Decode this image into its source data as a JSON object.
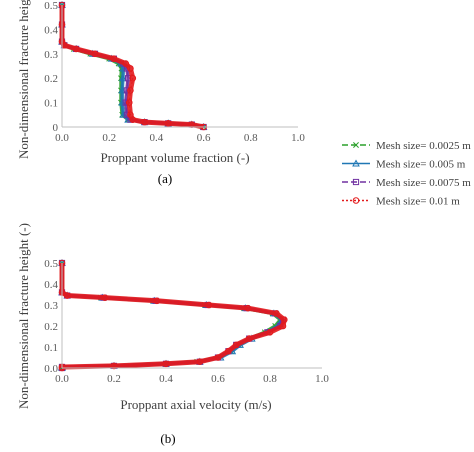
{
  "chart_data": [
    {
      "type": "line",
      "panel_label": "(a)",
      "xlabel": "Proppant volume fraction (-)",
      "ylabel": "Non-dimensional fracture height (-)",
      "xlim": [
        0,
        1.0
      ],
      "ylim": [
        0,
        0.5
      ],
      "xticks": [
        "0.0",
        "0.2",
        "0.4",
        "0.6",
        "0.8",
        "1.0"
      ],
      "yticks": [
        "0",
        "0.1",
        "0.2",
        "0.3",
        "0.4",
        "0.5"
      ],
      "grid": false,
      "series": [
        {
          "name": "Mesh size= 0.0025 m",
          "color": "#2ca02c",
          "marker": "x",
          "x": [
            0.6,
            0.55,
            0.45,
            0.35,
            0.28,
            0.255,
            0.25,
            0.25,
            0.25,
            0.252,
            0.24,
            0.2,
            0.12,
            0.05,
            0.01,
            0.0,
            0.0,
            0.0
          ],
          "y": [
            0.0,
            0.01,
            0.015,
            0.02,
            0.03,
            0.05,
            0.1,
            0.15,
            0.2,
            0.24,
            0.26,
            0.28,
            0.3,
            0.32,
            0.335,
            0.35,
            0.42,
            0.5
          ]
        },
        {
          "name": "Mesh size= 0.005 m",
          "color": "#1f77b4",
          "marker": "triangle",
          "x": [
            0.6,
            0.55,
            0.45,
            0.35,
            0.28,
            0.26,
            0.255,
            0.255,
            0.258,
            0.26,
            0.25,
            0.21,
            0.13,
            0.06,
            0.01,
            0.0,
            0.0,
            0.0
          ],
          "y": [
            0.0,
            0.01,
            0.015,
            0.02,
            0.03,
            0.05,
            0.1,
            0.15,
            0.2,
            0.24,
            0.26,
            0.28,
            0.3,
            0.32,
            0.335,
            0.35,
            0.42,
            0.5
          ]
        },
        {
          "name": "Mesh size= 0.0075 m",
          "color": "#7030a0",
          "marker": "square",
          "x": [
            0.6,
            0.55,
            0.45,
            0.35,
            0.29,
            0.275,
            0.27,
            0.275,
            0.28,
            0.275,
            0.26,
            0.22,
            0.14,
            0.06,
            0.01,
            0.0,
            0.0,
            0.0
          ],
          "y": [
            0.0,
            0.01,
            0.015,
            0.02,
            0.03,
            0.05,
            0.1,
            0.15,
            0.2,
            0.24,
            0.26,
            0.28,
            0.3,
            0.32,
            0.335,
            0.35,
            0.42,
            0.5
          ]
        },
        {
          "name": "Mesh size= 0.01 m",
          "color": "#e31a1c",
          "marker": "circle",
          "x": [
            0.6,
            0.55,
            0.45,
            0.35,
            0.3,
            0.29,
            0.285,
            0.29,
            0.3,
            0.29,
            0.27,
            0.22,
            0.14,
            0.06,
            0.01,
            0.0,
            0.0,
            0.0
          ],
          "y": [
            0.0,
            0.01,
            0.015,
            0.02,
            0.03,
            0.05,
            0.1,
            0.15,
            0.2,
            0.24,
            0.26,
            0.28,
            0.3,
            0.32,
            0.335,
            0.35,
            0.42,
            0.5
          ]
        }
      ]
    },
    {
      "type": "line",
      "panel_label": "(b)",
      "xlabel": "Proppant axial velocity (m/s)",
      "ylabel": "Non-dimensional fracture height (-)",
      "xlim": [
        0,
        1.0
      ],
      "ylim": [
        0,
        0.5
      ],
      "xticks": [
        "0.0",
        "0.2",
        "0.4",
        "0.6",
        "0.8",
        "1.0"
      ],
      "yticks": [
        "0.0",
        "0.1",
        "0.2",
        "0.3",
        "0.4",
        "0.5"
      ],
      "grid": false,
      "series": [
        {
          "name": "Mesh size= 0.0025 m",
          "color": "#2ca02c",
          "marker": "x",
          "x": [
            0.0,
            0.0,
            0.2,
            0.4,
            0.52,
            0.6,
            0.65,
            0.68,
            0.72,
            0.78,
            0.82,
            0.84,
            0.81,
            0.7,
            0.55,
            0.35,
            0.15,
            0.02,
            0.0,
            0.0
          ],
          "y": [
            0.0,
            0.005,
            0.01,
            0.02,
            0.03,
            0.05,
            0.08,
            0.11,
            0.14,
            0.17,
            0.2,
            0.23,
            0.26,
            0.285,
            0.3,
            0.32,
            0.335,
            0.345,
            0.36,
            0.5
          ]
        },
        {
          "name": "Mesh size= 0.005 m",
          "color": "#1f77b4",
          "marker": "triangle",
          "x": [
            0.0,
            0.0,
            0.2,
            0.4,
            0.53,
            0.61,
            0.655,
            0.685,
            0.73,
            0.79,
            0.83,
            0.845,
            0.815,
            0.705,
            0.555,
            0.355,
            0.155,
            0.02,
            0.0,
            0.0
          ],
          "y": [
            0.0,
            0.005,
            0.01,
            0.02,
            0.03,
            0.05,
            0.08,
            0.11,
            0.14,
            0.17,
            0.2,
            0.23,
            0.26,
            0.285,
            0.3,
            0.32,
            0.335,
            0.345,
            0.36,
            0.5
          ]
        },
        {
          "name": "Mesh size= 0.0075 m",
          "color": "#7030a0",
          "marker": "square",
          "x": [
            0.0,
            0.0,
            0.2,
            0.4,
            0.53,
            0.6,
            0.64,
            0.67,
            0.72,
            0.79,
            0.84,
            0.85,
            0.82,
            0.71,
            0.56,
            0.36,
            0.16,
            0.02,
            0.0,
            0.0
          ],
          "y": [
            0.0,
            0.005,
            0.01,
            0.02,
            0.03,
            0.05,
            0.08,
            0.11,
            0.14,
            0.17,
            0.2,
            0.23,
            0.26,
            0.285,
            0.3,
            0.32,
            0.335,
            0.345,
            0.36,
            0.5
          ]
        },
        {
          "name": "Mesh size= 0.01 m",
          "color": "#e31a1c",
          "marker": "circle",
          "x": [
            0.0,
            0.0,
            0.2,
            0.4,
            0.53,
            0.6,
            0.64,
            0.67,
            0.72,
            0.8,
            0.85,
            0.855,
            0.825,
            0.715,
            0.565,
            0.365,
            0.165,
            0.02,
            0.0,
            0.0
          ],
          "y": [
            0.0,
            0.005,
            0.01,
            0.02,
            0.03,
            0.05,
            0.08,
            0.11,
            0.14,
            0.17,
            0.2,
            0.23,
            0.26,
            0.285,
            0.3,
            0.32,
            0.335,
            0.345,
            0.36,
            0.5
          ]
        }
      ]
    }
  ],
  "legend": {
    "placement": "right",
    "items": [
      {
        "label": "Mesh size= 0.0025 m",
        "color": "#2ca02c",
        "dash": "6,3",
        "marker": "x"
      },
      {
        "label": "Mesh size= 0.005 m",
        "color": "#1f77b4",
        "dash": "",
        "marker": "triangle"
      },
      {
        "label": "Mesh size= 0.0075 m",
        "color": "#7030a0",
        "dash": "6,3",
        "marker": "square"
      },
      {
        "label": "Mesh size= 0.01 m",
        "color": "#e31a1c",
        "dash": "2,2",
        "marker": "circle"
      }
    ]
  }
}
